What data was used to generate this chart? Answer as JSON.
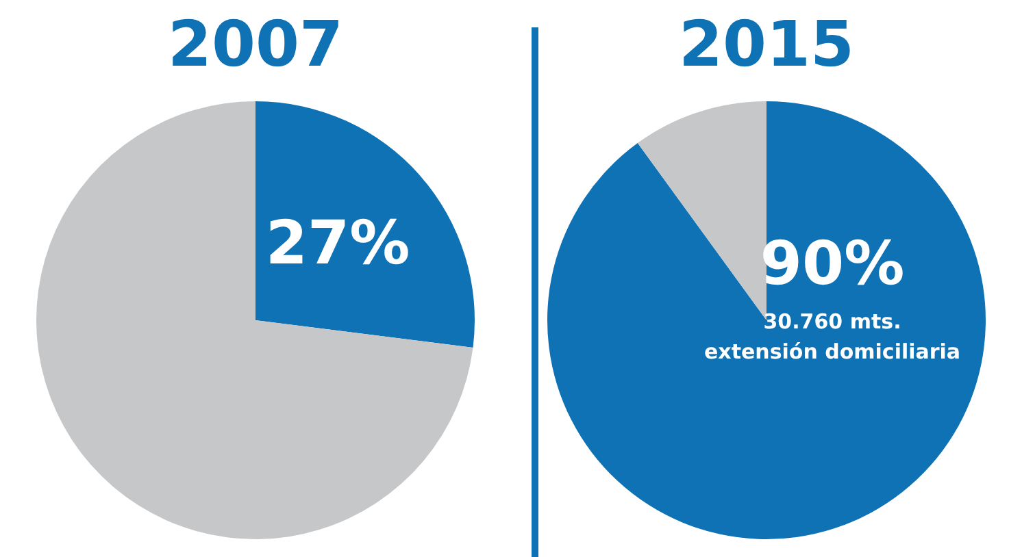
{
  "chart_data": [
    {
      "type": "pie",
      "title": "2007",
      "categories": [
        null,
        null
      ],
      "values": [
        27,
        73
      ],
      "colors": [
        "#0e72b5",
        "#c6c7c9"
      ],
      "value_labels": [
        "27%",
        null
      ]
    },
    {
      "type": "pie",
      "title": "2015",
      "categories": [
        null,
        null
      ],
      "values": [
        90,
        10
      ],
      "colors": [
        "#0e72b5",
        "#c6c7c9"
      ],
      "value_labels": [
        "90%",
        null
      ],
      "annotations": [
        "30.760 mts.",
        "extensión domiciliaria"
      ]
    }
  ]
}
